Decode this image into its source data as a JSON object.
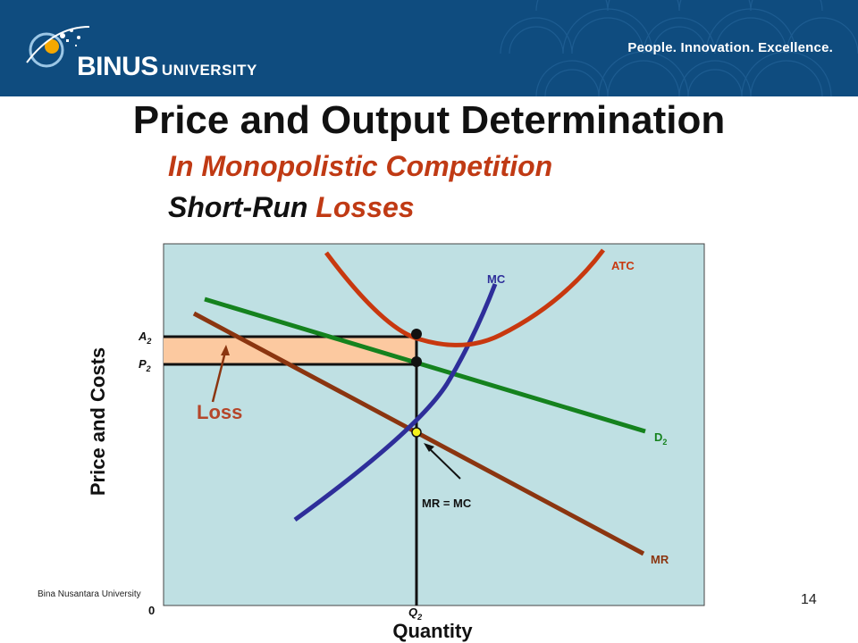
{
  "header": {
    "brand_main": "BINUS",
    "brand_sub": "UNIVERSITY",
    "tagline": "People. Innovation. Excellence."
  },
  "slide": {
    "title": "Price and Output Determination",
    "subtitle1": "In Monopolistic Competition",
    "subtitle2_prefix": "Short-Run ",
    "subtitle2_highlight": "Losses"
  },
  "diagram": {
    "y_axis_label": "Price and Costs",
    "x_axis_label": "Quantity",
    "origin_label": "0",
    "curves": {
      "atc": "ATC",
      "mc": "MC",
      "demand_main": "D",
      "demand_sub": "2",
      "mr": "MR"
    },
    "points": {
      "a_main": "A",
      "a_sub": "2",
      "p_main": "P",
      "p_sub": "2",
      "q_main": "Q",
      "q_sub": "2"
    },
    "annotations": {
      "loss": "Loss",
      "mr_eq_mc": "MR = MC"
    },
    "colors": {
      "background": "#bfe0e3",
      "atc": "#c8380f",
      "mc": "#2e2e9a",
      "demand": "#15821e",
      "mr": "#8b3510",
      "loss_area": "#fcc9a0",
      "loss_text": "#b5462a"
    }
  },
  "footer": {
    "org": "Bina Nusantara University",
    "page": "14"
  }
}
